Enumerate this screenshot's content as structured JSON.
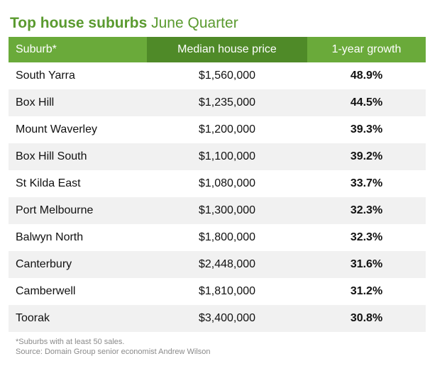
{
  "title": {
    "bold": "Top house suburbs",
    "normal": "June Quarter"
  },
  "colors": {
    "accent_green": "#6aaa3a",
    "accent_dark_green": "#4f8a28",
    "title_green": "#5a9a2f",
    "row_shade": "#f1f1f1"
  },
  "chart_data": {
    "type": "table",
    "columns": [
      "Suburb*",
      "Median house price",
      "1-year growth"
    ],
    "rows": [
      [
        "South Yarra",
        "$1,560,000",
        "48.9%"
      ],
      [
        "Box Hill",
        "$1,235,000",
        "44.5%"
      ],
      [
        "Mount Waverley",
        "$1,200,000",
        "39.3%"
      ],
      [
        "Box Hill South",
        "$1,100,000",
        "39.2%"
      ],
      [
        "St Kilda East",
        "$1,080,000",
        "33.7%"
      ],
      [
        "Port Melbourne",
        "$1,300,000",
        "32.3%"
      ],
      [
        "Balwyn North",
        "$1,800,000",
        "32.3%"
      ],
      [
        "Canterbury",
        "$2,448,000",
        "31.6%"
      ],
      [
        "Camberwell",
        "$1,810,000",
        "31.2%"
      ],
      [
        "Toorak",
        "$3,400,000",
        "30.8%"
      ]
    ]
  },
  "notes": {
    "footnote": "*Suburbs with at least 50 sales.",
    "source": "Source: Domain Group senior economist Andrew Wilson"
  }
}
